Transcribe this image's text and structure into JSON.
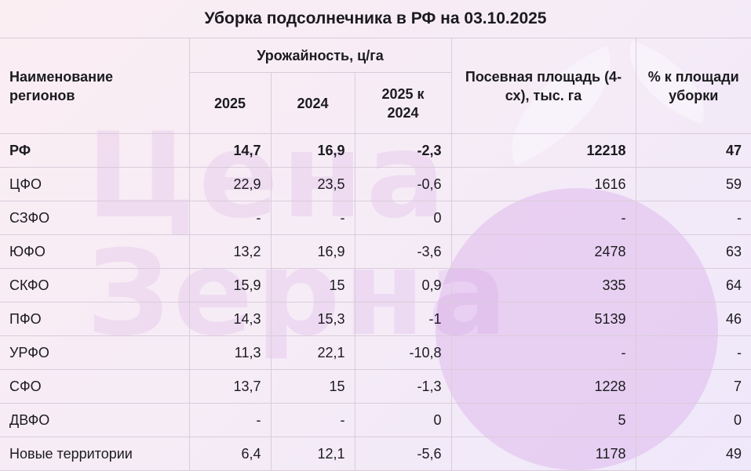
{
  "title": "Уборка подсолнечника в РФ на 03.10.2025",
  "header": {
    "region_col": "Наименование регионов",
    "yield_group": "Урожайность, ц/га",
    "year_2025": "2025",
    "year_2024": "2024",
    "diff": "2025 к 2024",
    "area": "Посевная площадь (4-сх), тыс. га",
    "percent": "% к площади уборки"
  },
  "rows": [
    {
      "region": "РФ",
      "y2025": "14,7",
      "y2024": "16,9",
      "diff": "-2,3",
      "area": "12218",
      "pct": "47"
    },
    {
      "region": "ЦФО",
      "y2025": "22,9",
      "y2024": "23,5",
      "diff": "-0,6",
      "area": "1616",
      "pct": "59"
    },
    {
      "region": "СЗФО",
      "y2025": "-",
      "y2024": "-",
      "diff": "0",
      "area": "-",
      "pct": "-"
    },
    {
      "region": "ЮФО",
      "y2025": "13,2",
      "y2024": "16,9",
      "diff": "-3,6",
      "area": "2478",
      "pct": "63"
    },
    {
      "region": "СКФО",
      "y2025": "15,9",
      "y2024": "15",
      "diff": "0,9",
      "area": "335",
      "pct": "64"
    },
    {
      "region": "ПФО",
      "y2025": "14,3",
      "y2024": "15,3",
      "diff": "-1",
      "area": "5139",
      "pct": "46"
    },
    {
      "region": "УРФО",
      "y2025": "11,3",
      "y2024": "22,1",
      "diff": "-10,8",
      "area": "-",
      "pct": "-"
    },
    {
      "region": "СФО",
      "y2025": "13,7",
      "y2024": "15",
      "diff": "-1,3",
      "area": "1228",
      "pct": "7"
    },
    {
      "region": "ДВФО",
      "y2025": "-",
      "y2024": "-",
      "diff": "0",
      "area": "5",
      "pct": "0"
    },
    {
      "region": "Новые территории",
      "y2025": "6,4",
      "y2024": "12,1",
      "diff": "-5,6",
      "area": "1178",
      "pct": "49"
    }
  ],
  "watermark": {
    "text_line1": "Цена",
    "text_line2": "Зерна",
    "color": "#c782dc"
  }
}
